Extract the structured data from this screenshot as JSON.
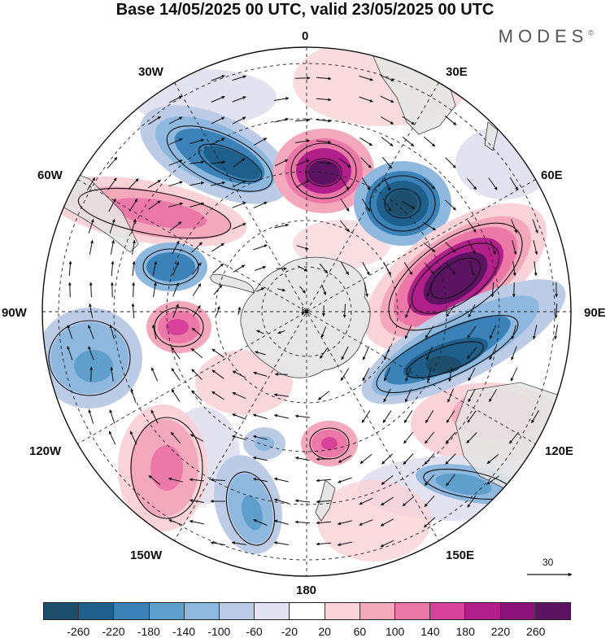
{
  "title": "Base 14/05/2025 00 UTC, valid 23/05/2025 00 UTC",
  "brand": {
    "name": "MODES",
    "mark": "©"
  },
  "map": {
    "projection": "south polar stereographic",
    "longitude_labels": {
      "top": "0",
      "top_right": "30E",
      "upper_right": "60E",
      "right": "90E",
      "lower_right": "120E",
      "bottom_right": "150E",
      "bottom": "180",
      "bottom_left": "150W",
      "lower_left": "120W",
      "left": "90W",
      "upper_left": "60W",
      "top_left": "30W"
    },
    "reference_vector": {
      "label": "30"
    }
  },
  "colorbar": {
    "ticks": [
      "-260",
      "-220",
      "-180",
      "-140",
      "-100",
      "-60",
      "-20",
      "20",
      "60",
      "100",
      "140",
      "180",
      "220",
      "260"
    ],
    "colors": [
      "#1d4e6b",
      "#1f5f8c",
      "#3a82b8",
      "#5e9fcc",
      "#8fb8de",
      "#bccbe6",
      "#e2e2f0",
      "#ffffff",
      "#f9d3d7",
      "#f4a8bb",
      "#ec78a7",
      "#d9429b",
      "#b01f8a",
      "#8a1278",
      "#5c1462"
    ]
  },
  "colors": {
    "land": "#e6e6e6",
    "outline": "#111111"
  }
}
